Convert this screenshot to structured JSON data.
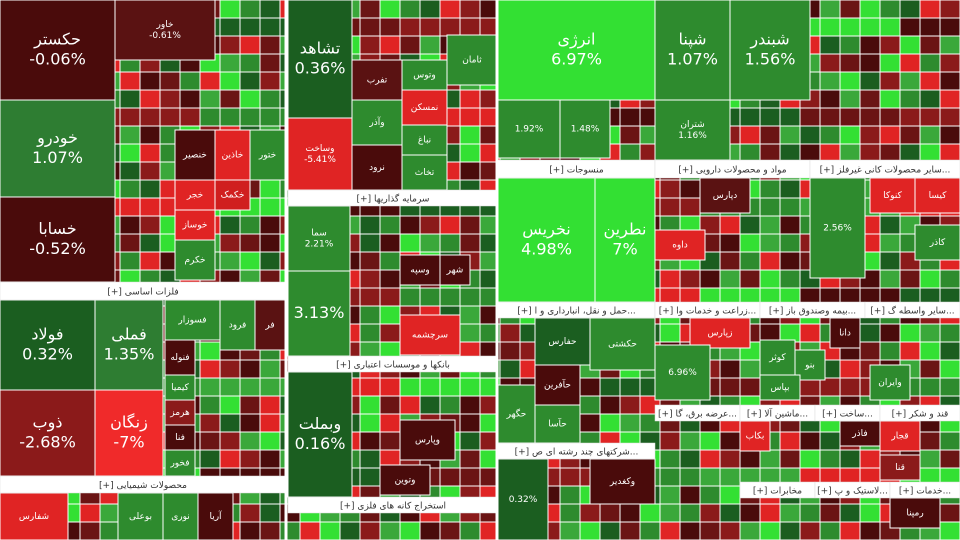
{
  "chart_data": {
    "type": "treemap",
    "palette": [
      "#4a0b0b",
      "#8b1a1a",
      "#e02424",
      "#1b5e20",
      "#2e8b2e",
      "#33e033",
      "#6b1414",
      "#3aa83a"
    ],
    "headers": [
      "[+] فلزات اساسی",
      "[+] محصولات شیمیایی",
      "[+] سرمایه گذاریها",
      "[+] بانکها و موسسات اعتباری",
      "[+] استخراج کانه های فلزی",
      "[+] منسوجات",
      "[+] حمل و نقل، انبارداری و ا...",
      "[+] شرکتهای چند رشته ای ص...",
      "[+] مواد و محصولات دارویی",
      "[+] زراعت و خدمات وا...",
      "[+] بیمه وصندوق باز...",
      "[+] سایر محصولات کانی غیرفلز...",
      "[+] سایر واسطه گ...",
      "[+] عرضه برق، گا...",
      "[+] ماشین آلا...",
      "[+] ساخت...",
      "[+] قند و شکر",
      "[+] مخابرات",
      "[+] لاستیک و پ...",
      "[+] خدمات..."
    ],
    "tiles": [
      {
        "label": "حکستر",
        "value": -0.06,
        "value_label": "-0.06%",
        "color": "#4a0b0b"
      },
      {
        "label": "خودرو",
        "value": 1.07,
        "value_label": "1.07%",
        "color": "#2e7d32"
      },
      {
        "label": "خسابا",
        "value": -0.52,
        "value_label": "-0.52%",
        "color": "#4a0b0b"
      },
      {
        "label": "خاور",
        "value": -0.61,
        "value_label": "-0.61%",
        "color": "#5a1212"
      },
      {
        "label": "خنصیر",
        "color": "#4a0b0b"
      },
      {
        "label": "خاذین",
        "color": "#e02424"
      },
      {
        "label": "ختور",
        "color": "#2e8b2e"
      },
      {
        "label": "خجر",
        "color": "#e02424"
      },
      {
        "label": "خکمک",
        "color": "#d01f1f"
      },
      {
        "label": "خوساز",
        "color": "#e02424"
      },
      {
        "label": "خکرم",
        "color": "#2e8b2e"
      },
      {
        "label": "فولاد",
        "value": 0.32,
        "value_label": "0.32%",
        "color": "#1b5e20"
      },
      {
        "label": "ذوب",
        "value": -2.68,
        "value_label": "-2.68%",
        "color": "#8b1a1a"
      },
      {
        "label": "فملی",
        "value": 1.35,
        "value_label": "1.35%",
        "color": "#2e7d32"
      },
      {
        "label": "زنگان",
        "value": -7,
        "value_label": "-7%",
        "color": "#f02a2a"
      },
      {
        "label": "فسوزار",
        "color": "#2e8b2e"
      },
      {
        "label": "فرود",
        "color": "#2e8b2e"
      },
      {
        "label": "فر",
        "color": "#5a1212"
      },
      {
        "label": "فنوله",
        "color": "#4a0b0b"
      },
      {
        "label": "کیمیا",
        "color": "#2e8b2e"
      },
      {
        "label": "هرمز",
        "color": "#8b1a1a"
      },
      {
        "label": "فنا",
        "color": "#4a0b0b"
      },
      {
        "label": "فخور",
        "color": "#2e8b2e"
      },
      {
        "label": "شفارس",
        "color": "#e02424"
      },
      {
        "label": "بوعلی",
        "color": "#2e8b2e"
      },
      {
        "label": "نوری",
        "color": "#2e8b2e"
      },
      {
        "label": "آریا",
        "color": "#4a0b0b"
      },
      {
        "label": "تشاهد",
        "value": 0.36,
        "value_label": "0.36%",
        "color": "#1b5e20"
      },
      {
        "label": "وساخت",
        "value": -5.41,
        "value_label": "-5.41%",
        "color": "#e02424"
      },
      {
        "label": "تفرب",
        "color": "#5a1212"
      },
      {
        "label": "وآذر",
        "color": "#2e8b2e"
      },
      {
        "label": "نرود",
        "color": "#4a0b0b"
      },
      {
        "label": "وتوس",
        "color": "#2e8b2e"
      },
      {
        "label": "نمسکن",
        "color": "#e02424"
      },
      {
        "label": "نباغ",
        "color": "#2e8b2e"
      },
      {
        "label": "تخاث",
        "color": "#2e8b2e"
      },
      {
        "label": "ثامان",
        "color": "#2e8b2e"
      },
      {
        "label": "سما",
        "value": 2.21,
        "value_label": "2.21%",
        "color": "#2e8b2e"
      },
      {
        "value": 3.13,
        "value_label": "3.13%",
        "color": "#2e8b2e"
      },
      {
        "label": "وسپه",
        "color": "#4a0b0b"
      },
      {
        "label": "شهر",
        "color": "#4a0b0b"
      },
      {
        "label": "سرچشمه",
        "color": "#e02424"
      },
      {
        "label": "وبملت",
        "value": 0.16,
        "value_label": "0.16%",
        "color": "#1b5e20"
      },
      {
        "label": "وپارس",
        "color": "#4a0b0b"
      },
      {
        "label": "وتوین",
        "color": "#4a0b0b"
      },
      {
        "label": "انرژی",
        "value": 6.97,
        "value_label": "6.97%",
        "color": "#33e033"
      },
      {
        "value": 1.92,
        "value_label": "1.92%",
        "color": "#2e8b2e"
      },
      {
        "value": 1.48,
        "value_label": "1.48%",
        "color": "#2e8b2e"
      },
      {
        "label": "نخریس",
        "value": 4.98,
        "value_label": "4.98%",
        "color": "#33e033"
      },
      {
        "label": "نطرین",
        "value": 7,
        "value_label": "7%",
        "color": "#33e033"
      },
      {
        "label": "حکشتی",
        "color": "#2e8b2e"
      },
      {
        "label": "حفارس",
        "color": "#1b5e20"
      },
      {
        "label": "حآفرین",
        "color": "#4a0b0b"
      },
      {
        "label": "حگهر",
        "color": "#2e8b2e"
      },
      {
        "label": "حآسا",
        "color": "#2e8b2e"
      },
      {
        "label": "وکغدیر",
        "color": "#4a0b0b"
      },
      {
        "value": 0.32,
        "value_label": "0.32%",
        "color": "#1b5e20"
      },
      {
        "label": "شپنا",
        "value": 1.07,
        "value_label": "1.07%",
        "color": "#2e8b2e"
      },
      {
        "label": "شبندر",
        "value": 1.56,
        "value_label": "1.56%",
        "color": "#2e8b2e"
      },
      {
        "label": "شتران",
        "value": 1.16,
        "value_label": "1.16%",
        "color": "#2e8b2e"
      },
      {
        "label": "دپارس",
        "color": "#5a1212"
      },
      {
        "label": "داوه",
        "color": "#e02424"
      },
      {
        "label": "زپارس",
        "color": "#e02424"
      },
      {
        "value": 6.96,
        "value_label": "6.96%",
        "color": "#2e8b2e"
      },
      {
        "label": "دانا",
        "color": "#4a0b0b"
      },
      {
        "label": "کوثر",
        "color": "#2e8b2e"
      },
      {
        "label": "بنو",
        "color": "#2e8b2e"
      },
      {
        "label": "بپاس",
        "color": "#2e8b2e"
      },
      {
        "label": "بکاب",
        "color": "#e02424"
      },
      {
        "label": "فاذر",
        "color": "#4a0b0b"
      },
      {
        "label": "قجار",
        "color": "#e02424"
      },
      {
        "label": "قنا",
        "color": "#8b1a1a"
      },
      {
        "label": "رمپنا",
        "color": "#4a0b0b"
      },
      {
        "label": "کیسا",
        "color": "#e02424"
      },
      {
        "label": "کنوکا",
        "color": "#e02424"
      },
      {
        "label": "کاذر",
        "color": "#2e8b2e"
      },
      {
        "value": 2.56,
        "value_label": "2.56%",
        "color": "#2e8b2e"
      },
      {
        "label": "وایران",
        "color": "#2e8b2e"
      }
    ]
  }
}
